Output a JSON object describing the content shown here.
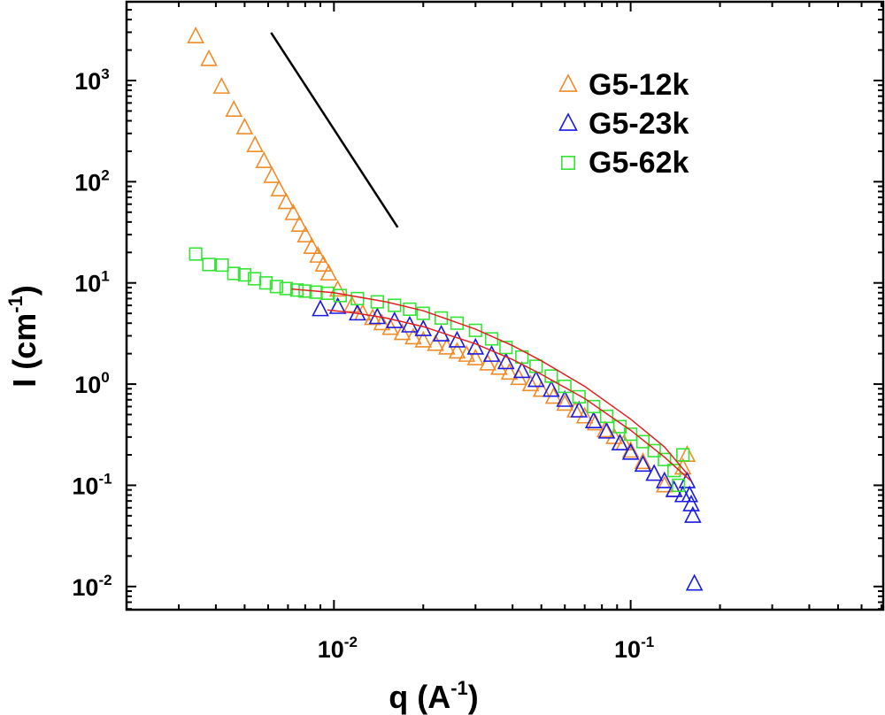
{
  "chart_data": {
    "type": "scatter",
    "title": "",
    "xlabel": {
      "main": "q (A",
      "exp": "-1",
      "close": ")"
    },
    "ylabel": {
      "main": "I (cm",
      "exp": "-1",
      "close": ")"
    },
    "xscale": "log",
    "yscale": "log",
    "xlim": [
      0.002,
      0.71
    ],
    "ylim": [
      0.0059,
      6000
    ],
    "grid": false,
    "legend_position": "top-right",
    "x_ticks": [
      {
        "value": 0.01,
        "base": "10",
        "exp": "-2"
      },
      {
        "value": 0.1,
        "base": "10",
        "exp": "-1"
      }
    ],
    "y_ticks": [
      {
        "value": 1000,
        "base": "10",
        "exp": "3"
      },
      {
        "value": 100,
        "base": "10",
        "exp": "2"
      },
      {
        "value": 10,
        "base": "10",
        "exp": "1"
      },
      {
        "value": 1,
        "base": "10",
        "exp": "0"
      },
      {
        "value": 0.1,
        "base": "10",
        "exp": "-1"
      },
      {
        "value": 0.01,
        "base": "10",
        "exp": "-2"
      }
    ],
    "series": [
      {
        "name": "G5-12k",
        "marker": "triangle",
        "color": "#f28c28",
        "x": [
          0.00342,
          0.00379,
          0.00418,
          0.0046,
          0.005,
          0.00542,
          0.00581,
          0.00618,
          0.00653,
          0.0069,
          0.00729,
          0.00765,
          0.00802,
          0.00842,
          0.00883,
          0.00921,
          0.0096,
          0.0103,
          0.0115,
          0.0125,
          0.0135,
          0.0145,
          0.0155,
          0.017,
          0.0185,
          0.02,
          0.022,
          0.024,
          0.026,
          0.028,
          0.03,
          0.033,
          0.036,
          0.039,
          0.042,
          0.046,
          0.05,
          0.055,
          0.06,
          0.065,
          0.07,
          0.076,
          0.082,
          0.088,
          0.095,
          0.1,
          0.11,
          0.12,
          0.13,
          0.14,
          0.15,
          0.155
        ],
        "y": [
          2740,
          1630,
          870,
          515,
          345,
          230,
          160,
          114,
          84,
          63,
          49,
          37.6,
          29.5,
          22.7,
          18.6,
          15.2,
          12.4,
          8.6,
          6.0,
          5.0,
          4.5,
          4.0,
          3.6,
          3.2,
          2.9,
          2.7,
          2.5,
          2.3,
          2.1,
          1.95,
          1.8,
          1.6,
          1.45,
          1.3,
          1.15,
          1.0,
          0.88,
          0.75,
          0.64,
          0.55,
          0.48,
          0.41,
          0.35,
          0.3,
          0.26,
          0.22,
          0.17,
          0.13,
          0.1,
          0.09,
          0.15,
          0.2
        ]
      },
      {
        "name": "G5-23k",
        "marker": "triangle",
        "color": "#1a1ae6",
        "x": [
          0.009,
          0.0103,
          0.012,
          0.014,
          0.016,
          0.018,
          0.02,
          0.023,
          0.026,
          0.03,
          0.034,
          0.038,
          0.043,
          0.048,
          0.054,
          0.06,
          0.067,
          0.075,
          0.083,
          0.092,
          0.1,
          0.11,
          0.12,
          0.13,
          0.14,
          0.15,
          0.155,
          0.158,
          0.16,
          0.162,
          0.164
        ],
        "y": [
          5.5,
          5.8,
          5.0,
          4.6,
          4.2,
          3.8,
          3.5,
          3.1,
          2.7,
          2.3,
          1.95,
          1.65,
          1.35,
          1.1,
          0.88,
          0.7,
          0.55,
          0.43,
          0.34,
          0.26,
          0.21,
          0.16,
          0.13,
          0.11,
          0.09,
          0.08,
          0.11,
          0.08,
          0.065,
          0.05,
          0.0107
        ]
      },
      {
        "name": "G5-62k",
        "marker": "square",
        "color": "#33e633",
        "x": [
          0.00342,
          0.00379,
          0.0042,
          0.0046,
          0.005,
          0.0054,
          0.0059,
          0.0064,
          0.0069,
          0.0075,
          0.008,
          0.0087,
          0.0095,
          0.0105,
          0.012,
          0.014,
          0.016,
          0.018,
          0.02,
          0.023,
          0.026,
          0.03,
          0.034,
          0.038,
          0.043,
          0.048,
          0.054,
          0.06,
          0.067,
          0.075,
          0.083,
          0.092,
          0.1,
          0.11,
          0.12,
          0.13,
          0.14,
          0.145,
          0.15
        ],
        "y": [
          19.3,
          15.2,
          15.0,
          12.4,
          12.0,
          11.0,
          10.0,
          9.2,
          8.8,
          8.5,
          8.3,
          8.1,
          7.9,
          7.5,
          7.0,
          6.5,
          6.0,
          5.5,
          5.0,
          4.5,
          4.0,
          3.4,
          2.8,
          2.3,
          1.85,
          1.5,
          1.2,
          0.95,
          0.75,
          0.6,
          0.48,
          0.38,
          0.32,
          0.27,
          0.22,
          0.18,
          0.14,
          0.1,
          0.2
        ]
      }
    ],
    "fit_lines": [
      {
        "name": "fit-upper",
        "color": "#e02020",
        "x": [
          0.0072,
          0.01,
          0.015,
          0.02,
          0.03,
          0.04,
          0.05,
          0.07,
          0.1,
          0.13,
          0.155
        ],
        "y": [
          8.7,
          8.0,
          6.5,
          5.3,
          3.5,
          2.4,
          1.7,
          0.95,
          0.45,
          0.24,
          0.13
        ]
      },
      {
        "name": "fit-lower",
        "color": "#e02020",
        "x": [
          0.0095,
          0.012,
          0.015,
          0.02,
          0.03,
          0.04,
          0.05,
          0.07,
          0.1,
          0.13,
          0.16
        ],
        "y": [
          5.4,
          5.0,
          4.5,
          3.7,
          2.5,
          1.75,
          1.25,
          0.72,
          0.35,
          0.19,
          0.11
        ]
      }
    ],
    "guide_line": {
      "name": "power-law-guide",
      "color": "#000000",
      "x": [
        0.00614,
        0.0164
      ],
      "y": [
        2970,
        35.4
      ]
    }
  }
}
